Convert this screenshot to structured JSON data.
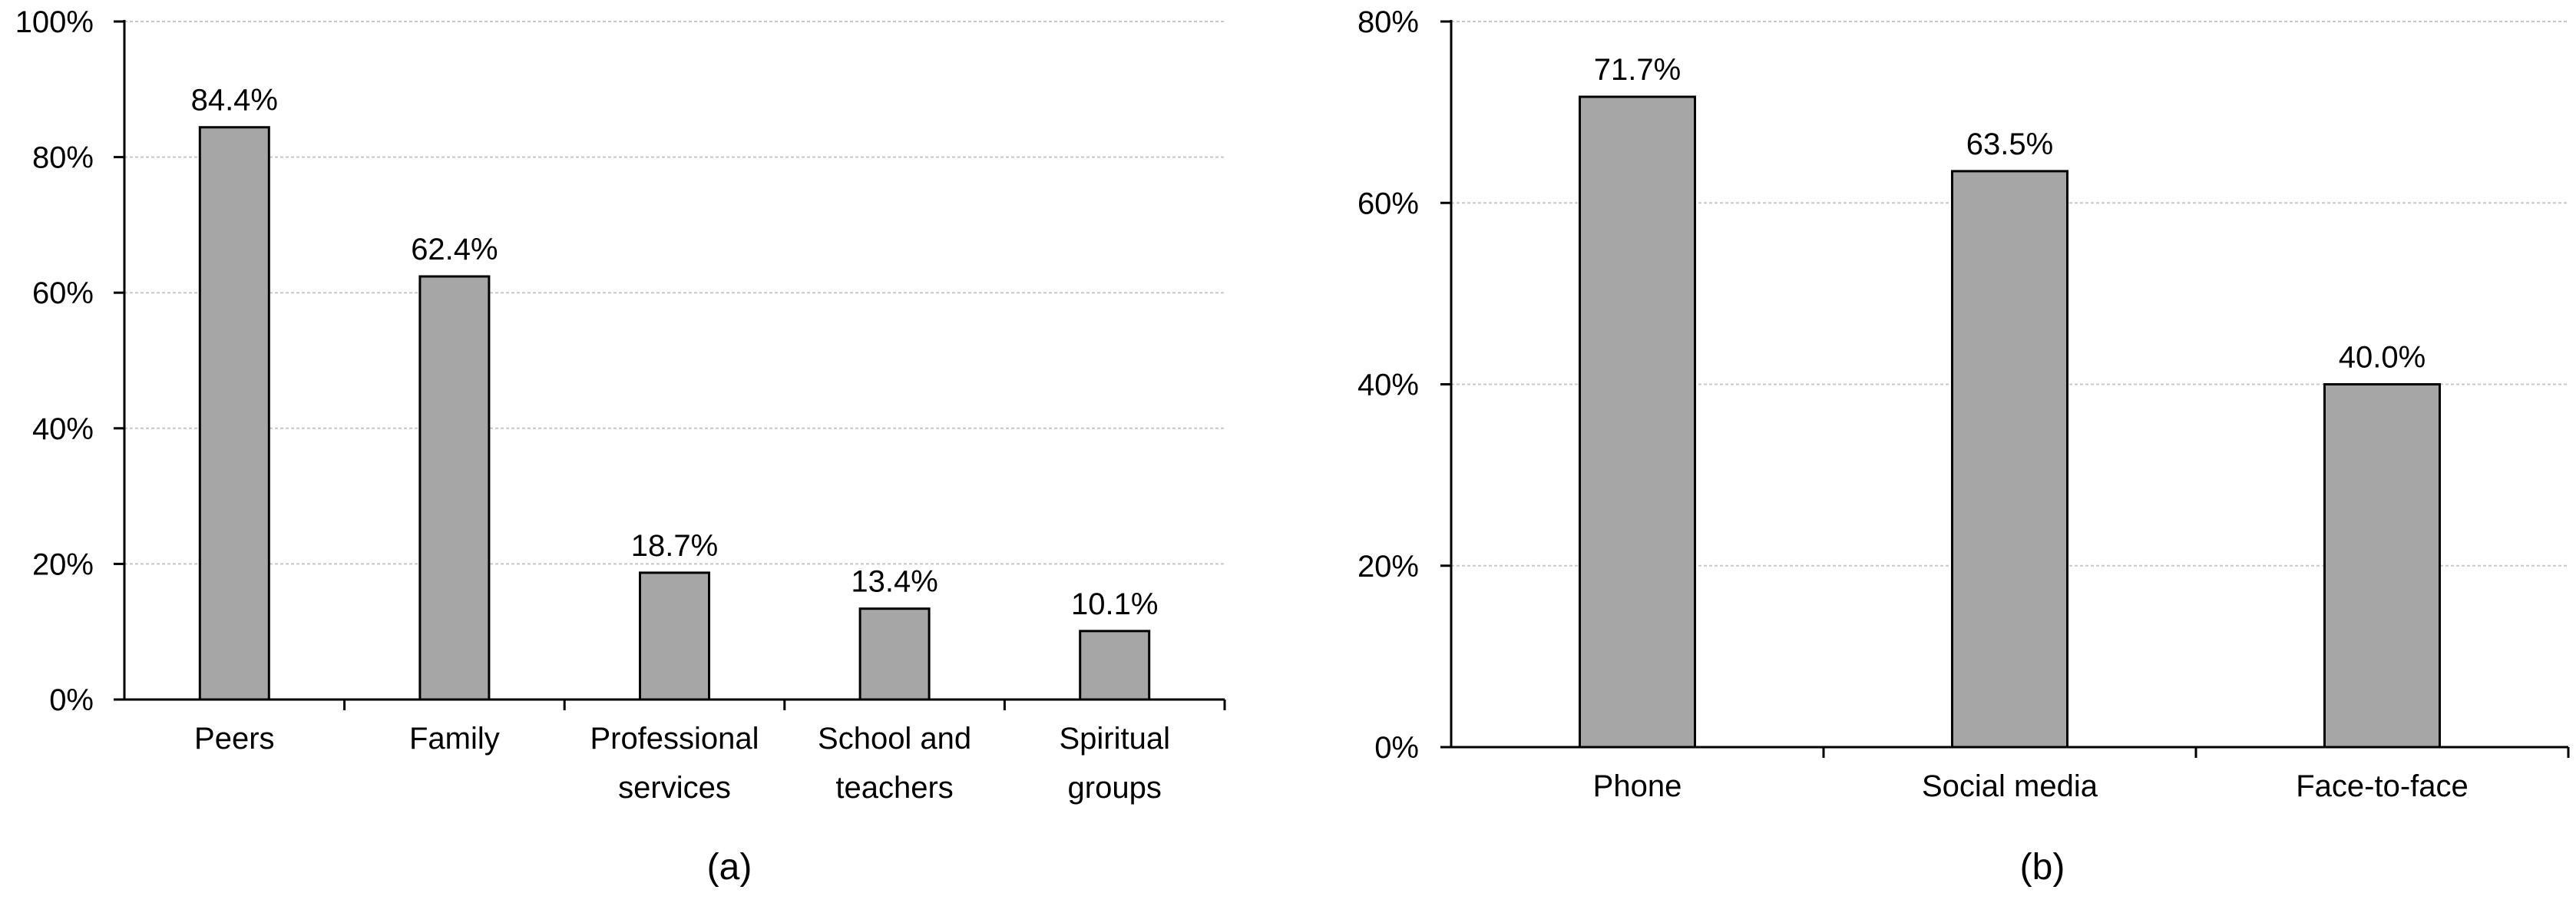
{
  "chart_data": [
    {
      "type": "bar",
      "panel_label": "(a)",
      "categories": [
        [
          "Peers"
        ],
        [
          "Family"
        ],
        [
          "Professional",
          "services"
        ],
        [
          "School and",
          "teachers"
        ],
        [
          "Spiritual",
          "groups"
        ]
      ],
      "values": [
        84.4,
        62.4,
        18.7,
        13.4,
        10.1
      ],
      "data_labels": [
        "84.4%",
        "62.4%",
        "18.7%",
        "13.4%",
        "10.1%"
      ],
      "ylim": [
        0,
        100
      ],
      "y_ticks": [
        0,
        20,
        40,
        60,
        80,
        100
      ],
      "y_tick_labels": [
        "0%",
        "20%",
        "40%",
        "60%",
        "80%",
        "100%"
      ],
      "title": "",
      "xlabel": "",
      "ylabel": "",
      "grid": true,
      "bar_color": "#a6a6a6"
    },
    {
      "type": "bar",
      "panel_label": "(b)",
      "categories": [
        [
          "Phone"
        ],
        [
          "Social media"
        ],
        [
          "Face-to-face"
        ]
      ],
      "values": [
        71.7,
        63.5,
        40.0
      ],
      "data_labels": [
        "71.7%",
        "63.5%",
        "40.0%"
      ],
      "ylim": [
        0,
        80
      ],
      "y_ticks": [
        0,
        20,
        40,
        60,
        80
      ],
      "y_tick_labels": [
        "0%",
        "20%",
        "40%",
        "60%",
        "80%"
      ],
      "title": "",
      "xlabel": "",
      "ylabel": "",
      "grid": true,
      "bar_color": "#a6a6a6"
    }
  ]
}
